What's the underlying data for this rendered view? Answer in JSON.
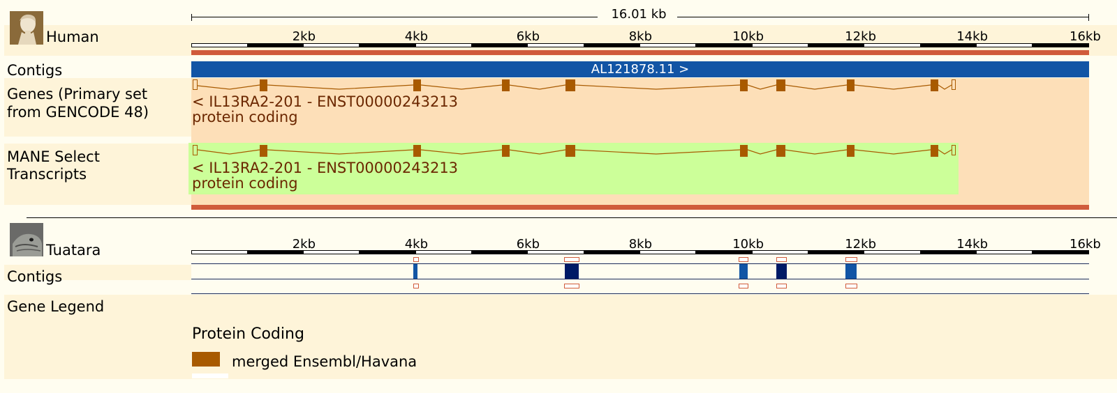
{
  "colors": {
    "page_bg": "#fffdf0",
    "band_bg": "#fef4d9",
    "gene_bg": "#fddfb8",
    "mane_bg": "#ccff99",
    "contig_blue": "#1255a5",
    "contig_dark": "#001a66",
    "exon_brown": "#a85a00",
    "region_red": "#d05b3b",
    "gene_label": "#6b2700"
  },
  "scale": {
    "total_label": "16.01 kb"
  },
  "human": {
    "name": "Human",
    "ticks": [
      "2kb",
      "4kb",
      "6kb",
      "8kb",
      "10kb",
      "12kb",
      "14kb",
      "16kb"
    ],
    "contigs_label": "Contigs",
    "contig_name": "AL121878.11 >",
    "genes_label": "Genes (Primary set from GENCODE 48)",
    "genes_label_line1": "Genes (Primary set",
    "genes_label_line2": "from GENCODE 48)",
    "gene_transcript": "< IL13RA2-201 - ENST00000243213",
    "gene_biotype": "protein coding",
    "mane_label_line1": "MANE Select",
    "mane_label_line2": "Transcripts",
    "mane_transcript": "< IL13RA2-201 - ENST00000243213",
    "mane_biotype": "protein coding"
  },
  "tuatara": {
    "name": "Tuatara",
    "ticks": [
      "2kb",
      "4kb",
      "6kb",
      "8kb",
      "10kb",
      "12kb",
      "14kb",
      "16kb"
    ],
    "contigs_label": "Contigs"
  },
  "legend": {
    "title": "Gene Legend",
    "category": "Protein Coding",
    "item_label": "merged Ensembl/Havana"
  }
}
